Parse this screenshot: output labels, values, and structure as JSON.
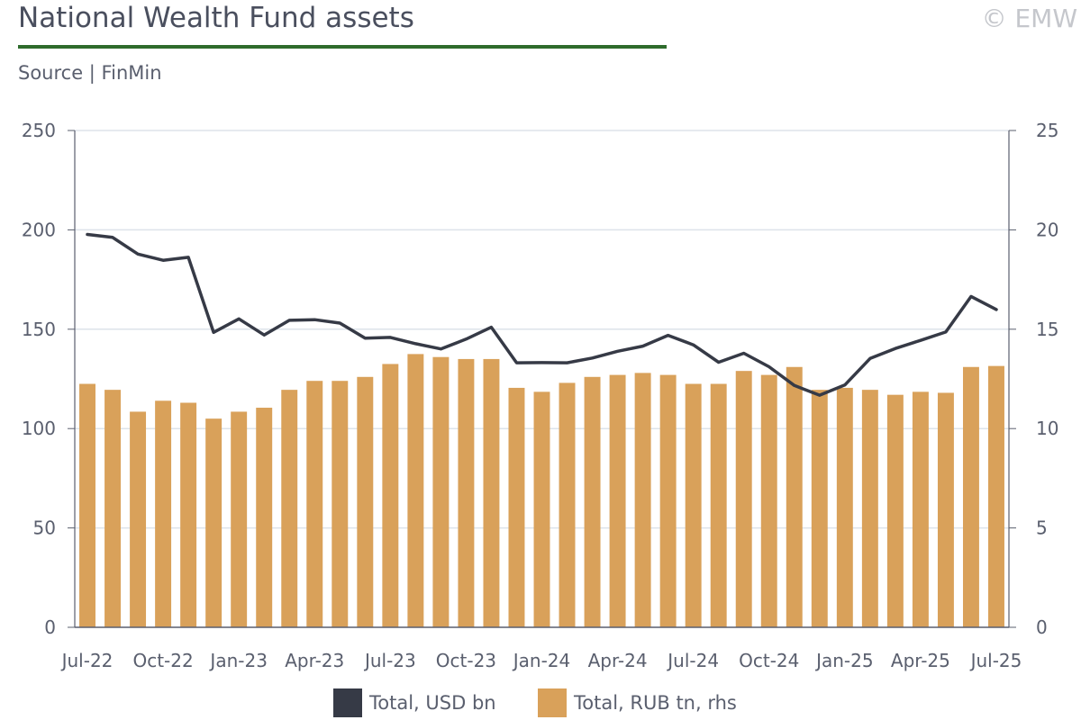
{
  "header": {
    "title": "National Wealth Fund assets",
    "source": "Source | FinMin",
    "copyright": "© EMW"
  },
  "colors": {
    "usd_line": "#363a46",
    "rub_bars": "#d9a15a",
    "grid": "#dde3ea",
    "axis": "#5a5f6e",
    "title_rule": "#2e6b2c"
  },
  "chart_data": {
    "type": "bar",
    "title": "National Wealth Fund assets",
    "x_tick_labels": [
      "Jul-22",
      "Oct-22",
      "Jan-23",
      "Apr-23",
      "Jul-23",
      "Oct-23",
      "Jan-24",
      "Apr-24",
      "Jul-24",
      "Oct-24",
      "Jan-25",
      "Apr-25",
      "Jul-25"
    ],
    "categories": [
      "Jul-22",
      "Aug-22",
      "Sep-22",
      "Oct-22",
      "Nov-22",
      "Dec-22",
      "Jan-23",
      "Feb-23",
      "Mar-23",
      "Apr-23",
      "May-23",
      "Jun-23",
      "Jul-23",
      "Aug-23",
      "Sep-23",
      "Oct-23",
      "Nov-23",
      "Dec-23",
      "Jan-24",
      "Feb-24",
      "Mar-24",
      "Apr-24",
      "May-24",
      "Jun-24",
      "Jul-24",
      "Aug-24",
      "Sep-24",
      "Oct-24",
      "Nov-24",
      "Dec-24",
      "Jan-25",
      "Feb-25",
      "Mar-25",
      "Apr-25",
      "May-25",
      "Jun-25",
      "Jul-25"
    ],
    "y_left": {
      "ylim": [
        0,
        250
      ],
      "ticks": [
        0,
        50,
        100,
        150,
        200,
        250
      ]
    },
    "y_right": {
      "ylim": [
        0,
        25
      ],
      "ticks": [
        0,
        5,
        10,
        15,
        20,
        25
      ]
    },
    "grid": true,
    "legend_position": "bottom",
    "series": [
      {
        "name": "Total, USD bn",
        "type": "line",
        "axis": "left",
        "values": [
          197.7,
          196.2,
          187.8,
          184.7,
          186.2,
          148.4,
          155.2,
          147.1,
          154.5,
          154.8,
          153.1,
          145.5,
          145.9,
          142.7,
          140.1,
          145.0,
          151.0,
          133.1,
          133.2,
          133.1,
          135.5,
          138.9,
          141.5,
          146.9,
          142.1,
          133.4,
          137.9,
          131.1,
          121.7,
          116.8,
          121.9,
          135.3,
          140.3,
          144.4,
          148.6,
          166.5,
          159.9
        ]
      },
      {
        "name": "Total, RUB tn, rhs",
        "type": "bar",
        "axis": "right",
        "values": [
          12.25,
          11.95,
          10.85,
          11.4,
          11.3,
          10.5,
          10.85,
          11.05,
          11.95,
          12.4,
          12.4,
          12.6,
          13.25,
          13.75,
          13.6,
          13.5,
          13.5,
          12.05,
          11.85,
          12.3,
          12.6,
          12.7,
          12.8,
          12.7,
          12.25,
          12.25,
          12.9,
          12.7,
          13.1,
          11.95,
          12.05,
          11.95,
          11.7,
          11.85,
          11.8,
          13.1,
          13.15
        ]
      }
    ]
  },
  "legend": [
    {
      "label": "Total, USD bn"
    },
    {
      "label": "Total, RUB tn, rhs"
    }
  ]
}
